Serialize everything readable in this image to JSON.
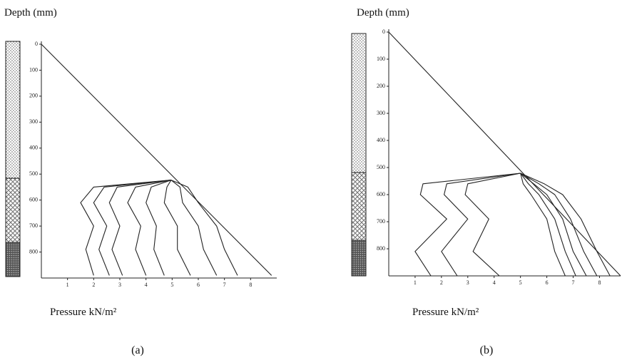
{
  "chart_data": [
    {
      "type": "line",
      "y_label": "Depth (mm)",
      "x_label": "Pressure kN/m²",
      "caption": "(a)",
      "xlim": [
        0,
        9
      ],
      "ylim": [
        0,
        900
      ],
      "xticks": [
        1,
        2,
        3,
        4,
        5,
        6,
        7,
        8
      ],
      "yticks": [
        0,
        100,
        200,
        300,
        400,
        500,
        600,
        700,
        800
      ],
      "color": "#222",
      "series": [
        {
          "x": [
            0,
            8.8
          ],
          "values": [
            0,
            890
          ]
        },
        {
          "x": [
            4.96,
            2.0,
            1.5,
            2.0,
            1.7,
            2.0
          ],
          "values": [
            523,
            550,
            610,
            700,
            790,
            890
          ]
        },
        {
          "x": [
            4.96,
            2.4,
            2.0,
            2.5,
            2.2,
            2.6
          ],
          "values": [
            523,
            550,
            610,
            700,
            790,
            890
          ]
        },
        {
          "x": [
            4.96,
            2.9,
            2.6,
            3.0,
            2.7,
            3.1
          ],
          "values": [
            523,
            550,
            610,
            700,
            790,
            890
          ]
        },
        {
          "x": [
            4.96,
            3.6,
            3.3,
            3.8,
            3.6,
            4.0
          ],
          "values": [
            523,
            550,
            610,
            700,
            790,
            890
          ]
        },
        {
          "x": [
            4.96,
            4.2,
            4.0,
            4.4,
            4.3,
            4.7
          ],
          "values": [
            523,
            550,
            610,
            700,
            790,
            890
          ]
        },
        {
          "x": [
            4.96,
            4.8,
            4.7,
            5.2,
            5.2,
            5.7
          ],
          "values": [
            523,
            550,
            610,
            700,
            790,
            890
          ]
        },
        {
          "x": [
            4.96,
            5.3,
            5.4,
            6.0,
            6.2,
            6.7
          ],
          "values": [
            523,
            550,
            610,
            700,
            790,
            890
          ]
        },
        {
          "x": [
            4.96,
            5.6,
            6.0,
            6.7,
            7.0,
            7.5
          ],
          "values": [
            523,
            550,
            610,
            700,
            790,
            890
          ]
        }
      ]
    },
    {
      "type": "line",
      "y_label": "Depth (mm)",
      "x_label": "Pressure kN/m²",
      "caption": "(b)",
      "xlim": [
        0,
        8.8
      ],
      "ylim": [
        0,
        900
      ],
      "xticks": [
        1,
        2,
        3,
        4,
        5,
        6,
        7,
        8
      ],
      "yticks": [
        0,
        100,
        200,
        300,
        400,
        500,
        600,
        700,
        800
      ],
      "color": "#222",
      "series": [
        {
          "x": [
            0,
            8.8
          ],
          "values": [
            0,
            900
          ]
        },
        {
          "x": [
            5.0,
            1.3,
            1.2,
            2.2,
            1.0,
            1.6
          ],
          "values": [
            521,
            560,
            600,
            690,
            810,
            900
          ]
        },
        {
          "x": [
            5.0,
            2.2,
            2.1,
            3.0,
            2.0,
            2.6
          ],
          "values": [
            521,
            560,
            600,
            690,
            810,
            900
          ]
        },
        {
          "x": [
            5.0,
            3.0,
            2.9,
            3.8,
            3.2,
            4.2
          ],
          "values": [
            521,
            560,
            600,
            690,
            810,
            900
          ]
        },
        {
          "x": [
            5.0,
            5.1,
            5.4,
            6.0,
            6.3,
            6.7
          ],
          "values": [
            521,
            560,
            600,
            690,
            810,
            900
          ]
        },
        {
          "x": [
            5.0,
            5.3,
            5.7,
            6.3,
            6.7,
            7.1
          ],
          "values": [
            521,
            560,
            600,
            690,
            810,
            900
          ]
        },
        {
          "x": [
            5.0,
            5.5,
            6.0,
            6.6,
            7.0,
            7.5
          ],
          "values": [
            521,
            560,
            600,
            690,
            810,
            900
          ]
        },
        {
          "x": [
            5.0,
            5.7,
            6.3,
            6.9,
            7.4,
            7.9
          ],
          "values": [
            521,
            560,
            600,
            690,
            810,
            900
          ]
        },
        {
          "x": [
            5.0,
            5.9,
            6.6,
            7.3,
            7.9,
            8.4
          ],
          "values": [
            521,
            560,
            600,
            690,
            810,
            900
          ]
        }
      ]
    }
  ]
}
